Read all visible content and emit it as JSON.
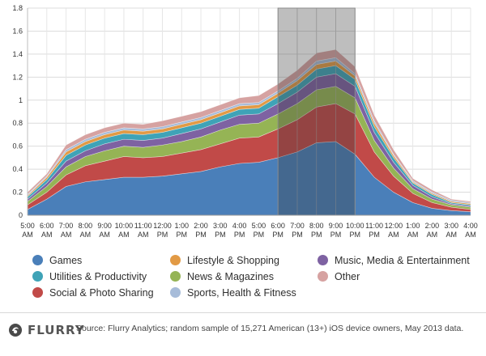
{
  "chart_data": {
    "type": "area",
    "stacked": true,
    "x": [
      "5:00 AM",
      "6:00 AM",
      "7:00 AM",
      "8:00 AM",
      "9:00 AM",
      "10:00 AM",
      "11:00 AM",
      "12:00 PM",
      "1:00 PM",
      "2:00 PM",
      "3:00 PM",
      "4:00 PM",
      "5:00 PM",
      "6:00 PM",
      "7:00 PM",
      "8:00 PM",
      "9:00 PM",
      "10:00 PM",
      "11:00 PM",
      "12:00 AM",
      "1:00 AM",
      "2:00 AM",
      "3:00 AM",
      "4:00 AM"
    ],
    "x_tick_lines": [
      [
        "5:00",
        "AM"
      ],
      [
        "6:00",
        "AM"
      ],
      [
        "7:00",
        "AM"
      ],
      [
        "8:00",
        "AM"
      ],
      [
        "9:00",
        "AM"
      ],
      [
        "10:00",
        "AM"
      ],
      [
        "11:00",
        "AM"
      ],
      [
        "12:00",
        "PM"
      ],
      [
        "1:00",
        "PM"
      ],
      [
        "2:00",
        "PM"
      ],
      [
        "3:00",
        "PM"
      ],
      [
        "4:00",
        "PM"
      ],
      [
        "5:00",
        "PM"
      ],
      [
        "6:00",
        "PM"
      ],
      [
        "7:00",
        "PM"
      ],
      [
        "8:00",
        "PM"
      ],
      [
        "9:00",
        "PM"
      ],
      [
        "10:00",
        "PM"
      ],
      [
        "11:00",
        "PM"
      ],
      [
        "12:00",
        "AM"
      ],
      [
        "1:00",
        "AM"
      ],
      [
        "2:00",
        "AM"
      ],
      [
        "3:00",
        "AM"
      ],
      [
        "4:00",
        "AM"
      ]
    ],
    "ylim": [
      0,
      1.8
    ],
    "yticks": [
      "0",
      "0.2",
      "0.4",
      "0.6",
      "0.8",
      "1",
      "1.2",
      "1.4",
      "1.6",
      "1.8"
    ],
    "ytick_values": [
      0,
      0.2,
      0.4,
      0.6,
      0.8,
      1,
      1.2,
      1.4,
      1.6,
      1.8
    ],
    "grid": true,
    "highlight": {
      "from": "6:00 PM",
      "to": "10:00 PM"
    },
    "series": [
      {
        "name": "Games",
        "color": "#4a7fb9",
        "values": [
          0.05,
          0.14,
          0.25,
          0.29,
          0.31,
          0.33,
          0.33,
          0.34,
          0.36,
          0.38,
          0.42,
          0.45,
          0.46,
          0.5,
          0.55,
          0.63,
          0.64,
          0.53,
          0.33,
          0.2,
          0.11,
          0.06,
          0.04,
          0.03
        ]
      },
      {
        "name": "Social & Photo Sharing",
        "color": "#c14a48",
        "values": [
          0.04,
          0.06,
          0.1,
          0.14,
          0.16,
          0.18,
          0.17,
          0.17,
          0.18,
          0.19,
          0.2,
          0.22,
          0.22,
          0.25,
          0.28,
          0.31,
          0.33,
          0.35,
          0.22,
          0.14,
          0.08,
          0.05,
          0.03,
          0.02
        ]
      },
      {
        "name": "News & Magazines",
        "color": "#95b455",
        "values": [
          0.03,
          0.05,
          0.07,
          0.08,
          0.09,
          0.09,
          0.09,
          0.1,
          0.1,
          0.11,
          0.12,
          0.12,
          0.12,
          0.13,
          0.14,
          0.15,
          0.15,
          0.14,
          0.1,
          0.07,
          0.04,
          0.03,
          0.02,
          0.02
        ]
      },
      {
        "name": "Music, Media & Entertainment",
        "color": "#7e62a2",
        "values": [
          0.02,
          0.03,
          0.05,
          0.05,
          0.06,
          0.06,
          0.06,
          0.06,
          0.07,
          0.07,
          0.07,
          0.08,
          0.08,
          0.09,
          0.1,
          0.11,
          0.11,
          0.1,
          0.07,
          0.05,
          0.03,
          0.02,
          0.01,
          0.01
        ]
      },
      {
        "name": "Utilities & Productivity",
        "color": "#3fa3b7",
        "values": [
          0.02,
          0.03,
          0.05,
          0.05,
          0.05,
          0.05,
          0.05,
          0.05,
          0.05,
          0.05,
          0.05,
          0.05,
          0.05,
          0.06,
          0.06,
          0.07,
          0.07,
          0.06,
          0.05,
          0.04,
          0.02,
          0.02,
          0.01,
          0.01
        ]
      },
      {
        "name": "Lifestyle & Shopping",
        "color": "#e29a45",
        "values": [
          0.01,
          0.02,
          0.03,
          0.03,
          0.03,
          0.03,
          0.03,
          0.03,
          0.03,
          0.03,
          0.03,
          0.03,
          0.03,
          0.03,
          0.04,
          0.04,
          0.04,
          0.03,
          0.03,
          0.02,
          0.01,
          0.01,
          0.01,
          0.01
        ]
      },
      {
        "name": "Sports, Health & Fitness",
        "color": "#a7bcd9",
        "values": [
          0.01,
          0.01,
          0.02,
          0.02,
          0.02,
          0.02,
          0.02,
          0.02,
          0.02,
          0.02,
          0.02,
          0.02,
          0.02,
          0.02,
          0.02,
          0.03,
          0.03,
          0.02,
          0.02,
          0.01,
          0.01,
          0.01,
          0.01,
          0.01
        ]
      },
      {
        "name": "Other",
        "color": "#d6a2a1",
        "values": [
          0.02,
          0.02,
          0.04,
          0.04,
          0.04,
          0.04,
          0.04,
          0.05,
          0.05,
          0.05,
          0.05,
          0.05,
          0.06,
          0.06,
          0.07,
          0.07,
          0.07,
          0.06,
          0.05,
          0.04,
          0.02,
          0.02,
          0.01,
          0.01
        ]
      }
    ]
  },
  "legend": {
    "items": [
      {
        "name": "Games",
        "color": "#4a7fb9"
      },
      {
        "name": "Utilities & Productivity",
        "color": "#3fa3b7"
      },
      {
        "name": "Social & Photo Sharing",
        "color": "#c14a48"
      },
      {
        "name": "Lifestyle & Shopping",
        "color": "#e29a45"
      },
      {
        "name": "News & Magazines",
        "color": "#95b455"
      },
      {
        "name": "Sports, Health & Fitness",
        "color": "#a7bcd9"
      },
      {
        "name": "Music, Media & Entertainment",
        "color": "#7e62a2"
      },
      {
        "name": "Other",
        "color": "#d6a2a1"
      }
    ]
  },
  "footer": {
    "logo_text": "FLURRY",
    "source": "Source: Flurry Analytics; random sample of 15,271 American (13+) iOS device owners, May 2013 data."
  }
}
